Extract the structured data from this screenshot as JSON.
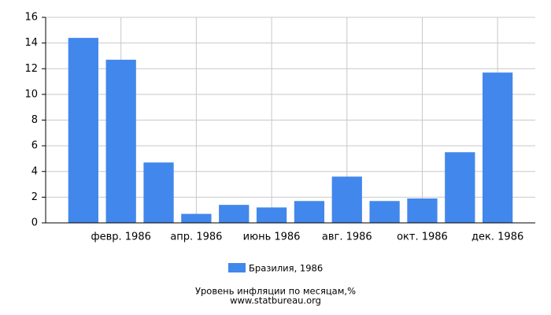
{
  "chart_data": {
    "type": "bar",
    "title": "Уровень инфляции по месяцам,%",
    "subtitle": "www.statbureau.org",
    "categories": [
      null,
      "февр. 1986",
      null,
      "апр. 1986",
      null,
      "июнь 1986",
      null,
      "авг. 1986",
      null,
      "окт. 1986",
      null,
      "дек. 1986"
    ],
    "series": [
      {
        "name": "Бразилия, 1986",
        "color": "#4287ec",
        "values": [
          14.4,
          12.7,
          4.7,
          0.7,
          1.4,
          1.2,
          1.7,
          3.6,
          1.7,
          1.9,
          5.5,
          11.7
        ]
      }
    ],
    "ylim": [
      0,
      16
    ],
    "yticks": [
      0,
      2,
      4,
      6,
      8,
      10,
      12,
      14,
      16
    ],
    "grid": true
  }
}
